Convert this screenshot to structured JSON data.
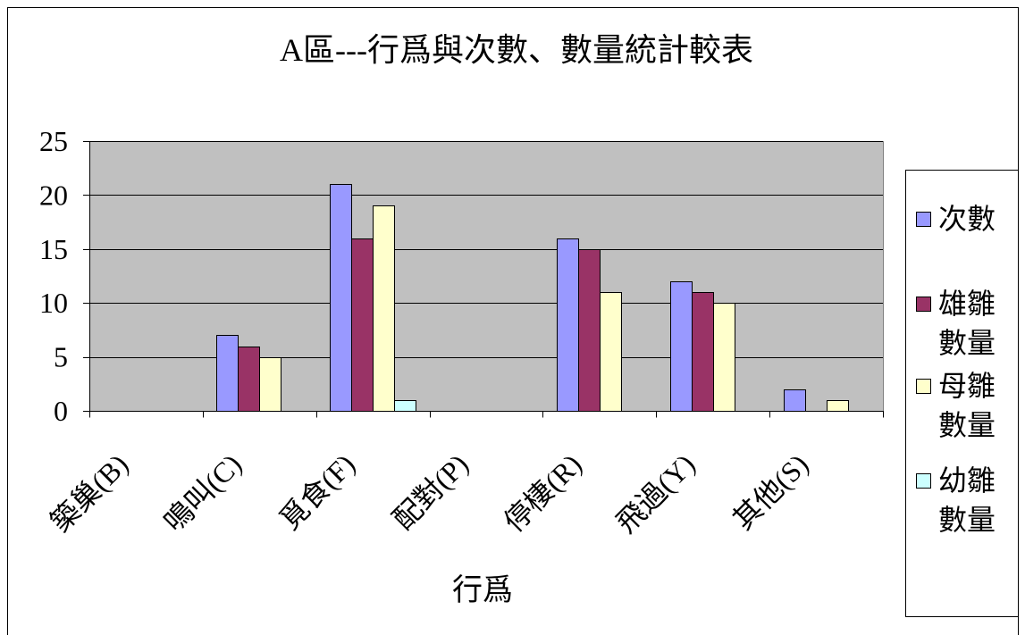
{
  "chart_data": {
    "type": "bar",
    "title": "A區---行爲與次數、數量統計較表",
    "xlabel": "行爲",
    "categories": [
      "築巢(B)",
      "鳴叫(C)",
      "覓食(F)",
      "配對(P)",
      "停棲(R)",
      "飛過(Y)",
      "其他(S)"
    ],
    "series": [
      {
        "name": "次數",
        "color": "#9999FF",
        "values": [
          0,
          7,
          21,
          0,
          16,
          12,
          2
        ]
      },
      {
        "name": "雄雛數量",
        "color": "#993366",
        "values": [
          0,
          6,
          16,
          0,
          15,
          11,
          0
        ]
      },
      {
        "name": "母雛數量",
        "color": "#FFFFCC",
        "values": [
          0,
          5,
          19,
          0,
          11,
          10,
          1
        ]
      },
      {
        "name": "幼雛數量",
        "color": "#CCFFFF",
        "values": [
          0,
          0,
          1,
          0,
          0,
          0,
          0
        ]
      }
    ],
    "ylim": [
      0,
      25
    ],
    "yticks": [
      0,
      5,
      10,
      15,
      20,
      25
    ],
    "grid": true,
    "legend": "right",
    "plot_background": "#C0C0C0"
  }
}
